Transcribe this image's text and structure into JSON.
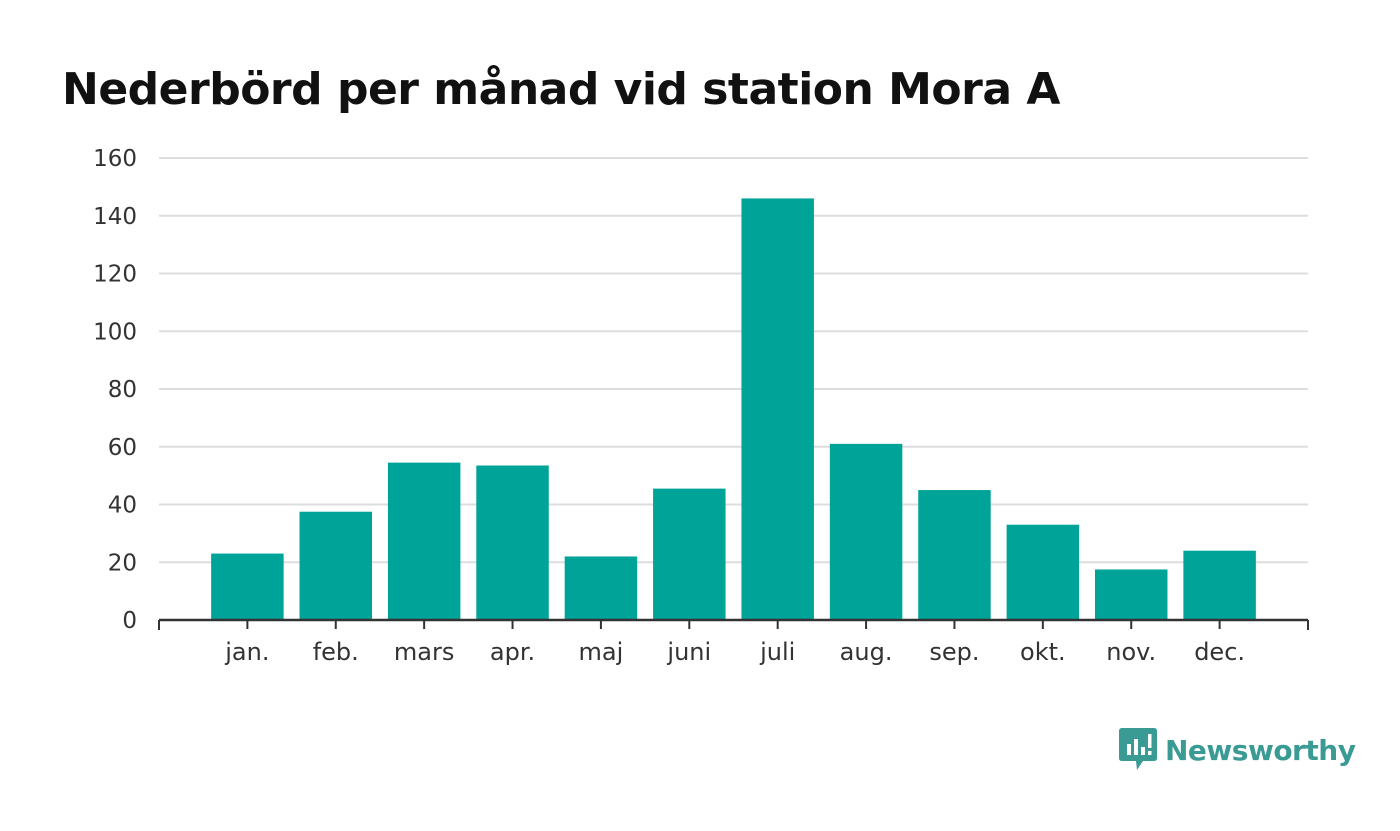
{
  "chart_data": {
    "type": "bar",
    "title": "Nederbörd per månad vid station Mora A",
    "xlabel": "",
    "ylabel": "",
    "categories": [
      "jan.",
      "feb.",
      "mars",
      "apr.",
      "maj",
      "juni",
      "juli",
      "aug.",
      "sep.",
      "okt.",
      "nov.",
      "dec."
    ],
    "values": [
      23,
      37.5,
      54.5,
      53.5,
      22,
      45.5,
      146,
      61,
      45,
      33,
      17.5,
      24
    ],
    "ylim": [
      0,
      160
    ],
    "yticks": [
      "0",
      "20",
      "40",
      "60",
      "80",
      "100",
      "120",
      "140",
      "160"
    ],
    "grid": true,
    "legend": "none",
    "bar_color": "#00a398",
    "grid_color": "#dddddd",
    "axis_color": "#333333"
  },
  "brand": {
    "name": "Newsworthy",
    "icon": "newsworthy-logo-icon",
    "color": "#3a9a94"
  }
}
